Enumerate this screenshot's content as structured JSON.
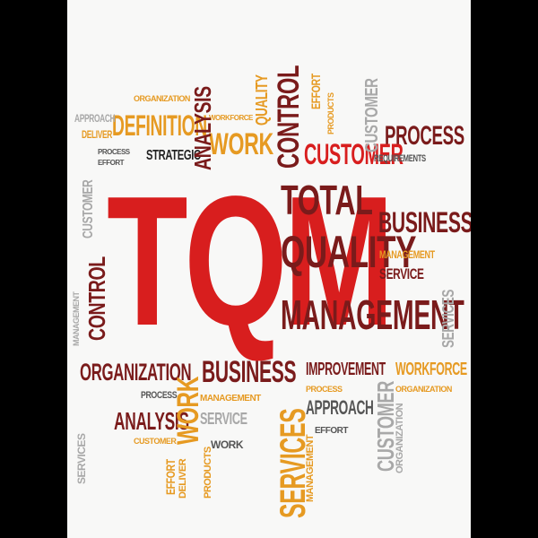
{
  "words": {
    "tqm": "TQM",
    "total": "TOTAL",
    "quality": "QUALITY",
    "management": "MANAGEMENT",
    "business_top": "BUSINESS",
    "business_bottom": "BUSINESS",
    "customer_top": "CUSTOMER",
    "process_top": "PROCESS",
    "definition": "DEFINITION",
    "control_top": "CONTROL",
    "control_left": "CONTROL",
    "analysis_top": "ANALYSIS",
    "analysis_bottom": "ANALYSIS",
    "work_top": "WORK",
    "work_bottom": "WORK",
    "strategic": "STRATEGIC",
    "organization_bottom": "ORGANIZATION",
    "improvement": "IMPROVEMENT",
    "workforce_bottom": "WORKFORCE",
    "services_big": "SERVICES",
    "approach_bottom": "APPROACH",
    "customer_bottom": "CUSTOMER",
    "approach_top": "APPROACH",
    "deliver_top": "DELIVER",
    "process_small": "PROCESS",
    "effort_small": "EFFORT",
    "customer_left": "CUSTOMER",
    "requirements": "REQUIREMENTS",
    "management_small": "MANAGEMENT",
    "service_right": "SERVICE",
    "process_mid": "PROCESS",
    "approach_mid": "APPROACH",
    "effort_mid": "EFFORT",
    "deliver_bottom": "DELIVER",
    "products_bottom": "PRODUCTS",
    "work_small": "WORK",
    "customer_small": "CUSTOMER",
    "workforce_small": "WORKFORCE",
    "quality_vert": "QUALITY",
    "products_top": "PRODUCTS",
    "effort_top": "EFFORT",
    "organization_top": "ORGANIZATION",
    "services_right": "SERVICES",
    "services_left": "SERVICES",
    "management_left": "MANAGEMENT",
    "customer_right_vert": "CUSTOMER",
    "organization_right_vert": "ORGANIZATION",
    "process_bottom2": "PROCESS",
    "effort_bottom": "EFFORT",
    "management_vert_bottom": "MANAGEMENT"
  },
  "colors": {
    "red": "#d81e1e",
    "dark_red": "#7a1b1b",
    "orange": "#e69a22",
    "gray": "#a8a8a8",
    "background": "#f8f8f7"
  }
}
